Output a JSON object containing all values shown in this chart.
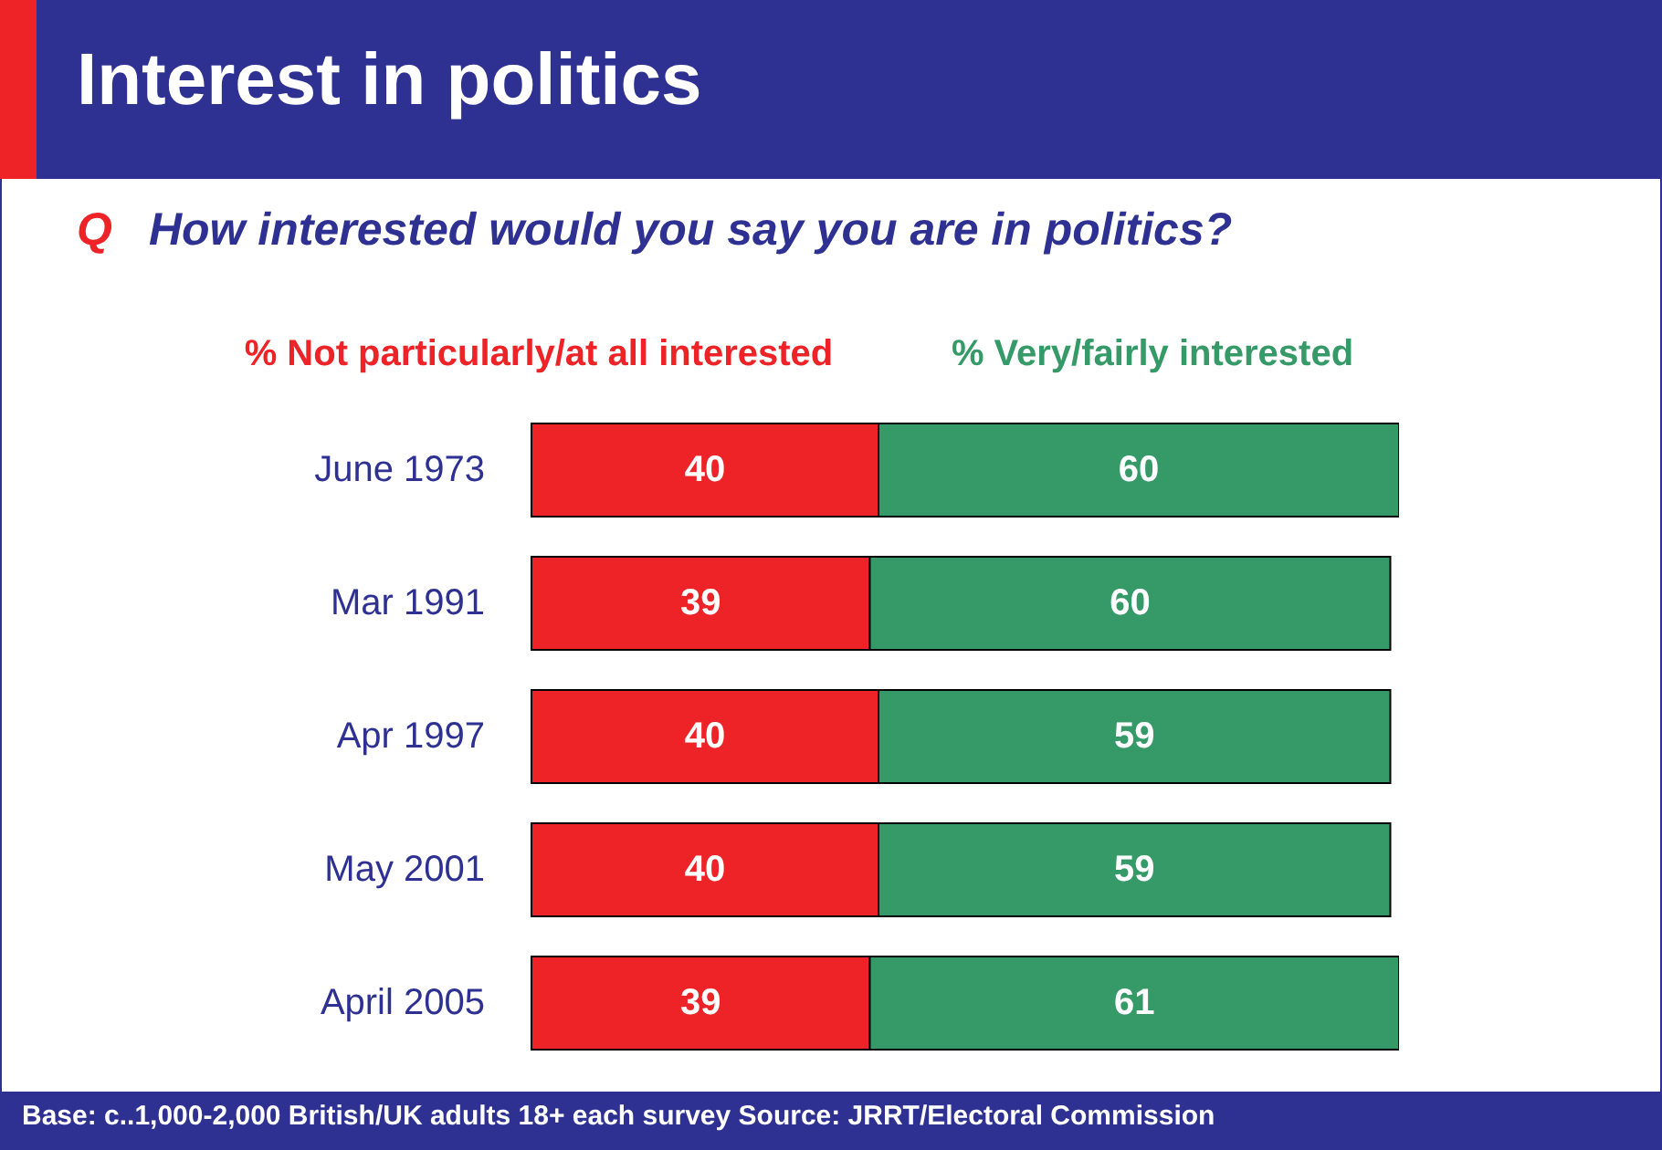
{
  "chart_data": {
    "type": "bar",
    "orientation": "horizontal",
    "stacked": true,
    "title": "Interest in politics",
    "subtitle": "Q How interested would you say you are in politics?",
    "categories": [
      "June 1973",
      "Mar 1991",
      "Apr 1997",
      "May 2001",
      "April 2005"
    ],
    "series": [
      {
        "name": "% Not particularly/at all interested",
        "color": "#ed2327",
        "values": [
          40,
          39,
          40,
          40,
          39
        ]
      },
      {
        "name": "%  Very/fairly interested",
        "color": "#359a68",
        "values": [
          60,
          60,
          59,
          59,
          61
        ]
      }
    ],
    "data_labels": true,
    "annotations": [
      "Base: c..1,000-2,000 British/UK adults 18+ each survey   Source: JRRT/Electoral Commission"
    ]
  }
}
